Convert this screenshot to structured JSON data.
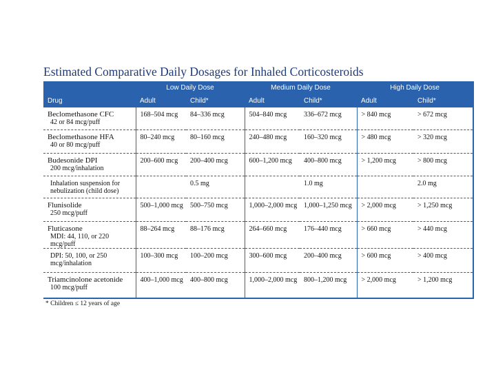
{
  "header": {
    "title": "Estimated Comparative Daily Dosages for Inhaled Corticosteroids"
  },
  "table": {
    "groups": [
      "Low Daily Dose",
      "Medium Daily Dose",
      "High Daily Dose"
    ],
    "columns": [
      "Drug",
      "Adult",
      "Child*",
      "Adult",
      "Child*",
      "Adult",
      "Child*"
    ],
    "rows": [
      {
        "drug": "Beclomethasone CFC",
        "detail": "42 or 84 mcg/puff",
        "doses": [
          "168–504 mcg",
          "84–336 mcg",
          "504–840 mcg",
          "336–672 mcg",
          "> 840 mcg",
          "> 672 mcg"
        ]
      },
      {
        "drug": "Beclomethasone HFA",
        "detail": "40 or 80 mcg/puff",
        "doses": [
          "80–240 mcg",
          "80–160 mcg",
          "240–480 mcg",
          "160–320 mcg",
          "> 480 mcg",
          "> 320 mcg"
        ]
      },
      {
        "drug": "Budesonide DPI",
        "detail": "200 mcg/inhalation",
        "doses": [
          "200–600 mcg",
          "200–400 mcg",
          "600–1,200 mcg",
          "400–800 mcg",
          "> 1,200 mcg",
          "> 800 mcg"
        ]
      },
      {
        "detail": "Inhalation suspension for nebulization (child dose)",
        "doses": [
          null,
          "0.5 mg",
          null,
          "1.0 mg",
          null,
          "2.0 mg"
        ]
      },
      {
        "drug": "Flunisolide",
        "detail": "250 mcg/puff",
        "doses": [
          "500–1,000 mcg",
          "500–750 mcg",
          "1,000–2,000 mcg",
          "1,000–1,250 mcg",
          "> 2,000 mcg",
          "> 1,250 mcg"
        ]
      },
      {
        "drug": "Fluticasone",
        "detail": "MDI: 44, 110, or 220 mcg/puff",
        "doses": [
          "88–264 mcg",
          "88–176 mcg",
          "264–660 mcg",
          "176–440 mcg",
          "> 660 mcg",
          "> 440 mcg"
        ]
      },
      {
        "detail": "DPI: 50, 100, or 250 mcg/inhalation",
        "doses": [
          "100–300 mcg",
          "100–200 mcg",
          "300–600 mcg",
          "200–400 mcg",
          "> 600 mcg",
          "> 400 mcg"
        ]
      },
      {
        "drug": "Triamcinolone acetonide",
        "detail": "100 mcg/puff",
        "doses": [
          "400–1,000 mcg",
          "400–800 mcg",
          "1,000–2,000 mcg",
          "800–1,200 mcg",
          "> 2,000 mcg",
          "> 1,200 mcg"
        ]
      }
    ]
  },
  "footnote": "* Children ≤ 12 years of age"
}
